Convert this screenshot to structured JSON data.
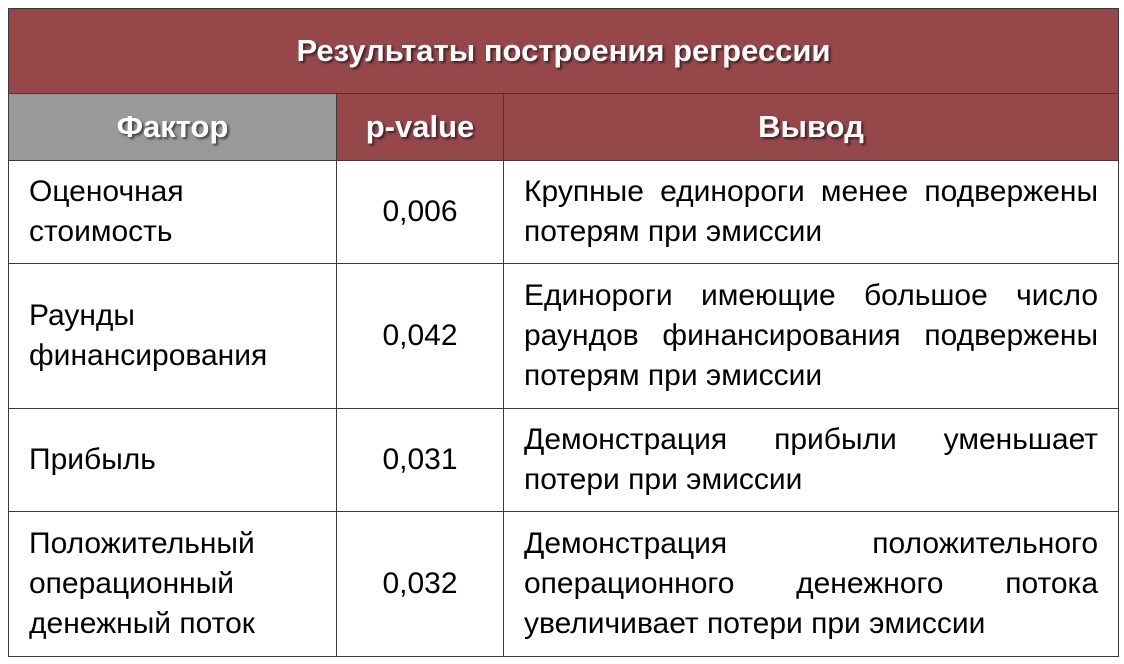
{
  "title": "Результаты построения регрессии",
  "headers": {
    "factor": "Фактор",
    "pvalue": "p-value",
    "conclusion": "Вывод"
  },
  "rows": [
    {
      "factor": "Оценочная стоимость",
      "pvalue": "0,006",
      "conclusion": "Крупные единороги менее подвержены потерям при эмиссии"
    },
    {
      "factor": "Раунды финансирования",
      "pvalue": "0,042",
      "conclusion": "Единороги имеющие большое число раундов финансирования подвержены потерям при эмиссии"
    },
    {
      "factor": "Прибыль",
      "pvalue": "0,031",
      "conclusion": "Демонстрация прибыли уменьшает потери при эмиссии"
    },
    {
      "factor": "Положительный операционный денежный поток",
      "pvalue": "0,032",
      "conclusion": "Демонстрация положительного операционного денежного потока увеличивает потери при эмиссии"
    }
  ],
  "colors": {
    "title_bg": "#95474a",
    "factor_header_bg": "#999999",
    "border": "#3a3a3a",
    "header_text": "#ffffff"
  }
}
